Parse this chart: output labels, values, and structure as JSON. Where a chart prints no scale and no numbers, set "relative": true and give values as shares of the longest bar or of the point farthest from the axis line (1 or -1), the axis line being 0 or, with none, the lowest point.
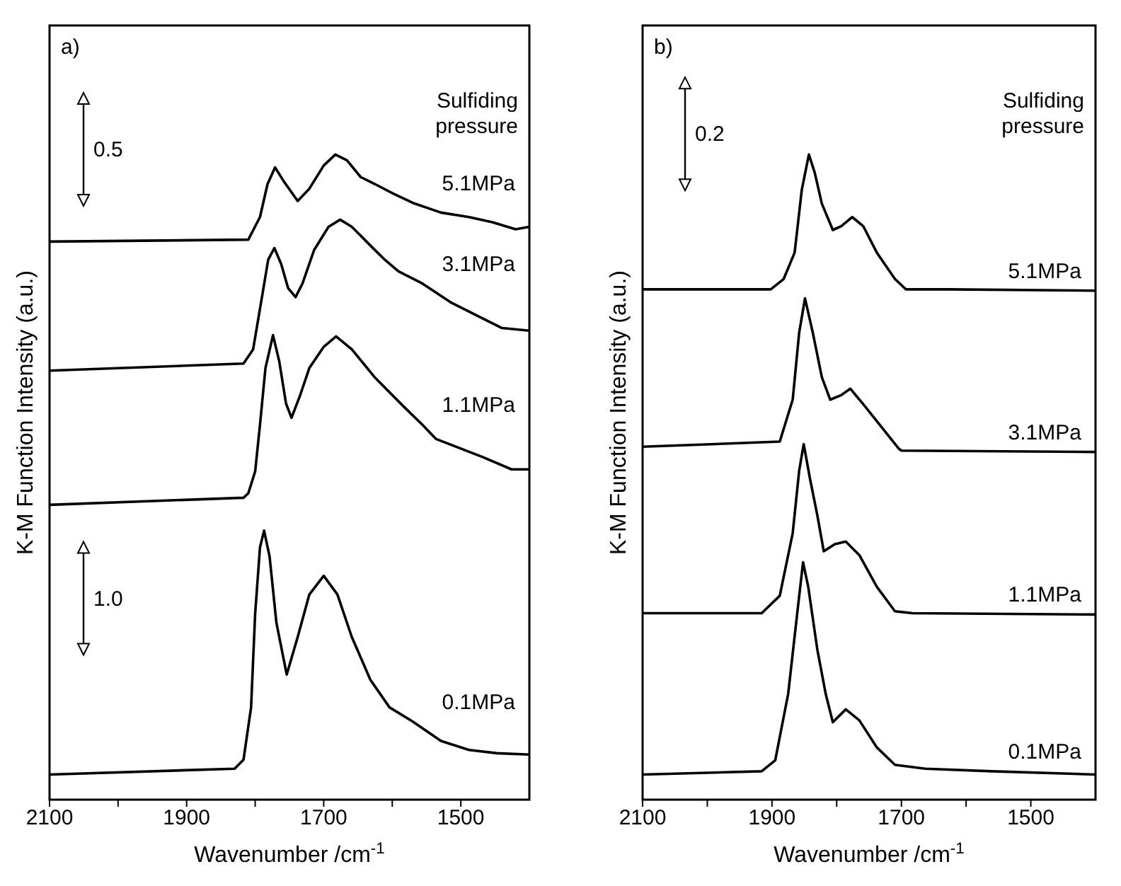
{
  "chart_data": [
    {
      "type": "line",
      "relative": true,
      "ylabel": "K-M Function Intensity (a.u.)",
      "xlabel": "Wavenumber /cm$^{-1}$",
      "xlim": [
        2100,
        1400
      ],
      "xticks": [
        2100,
        {
          "value": 2000,
          "label": null
        },
        1900,
        {
          "value": 1800,
          "label": null
        },
        1700,
        {
          "value": 1600,
          "label": null
        },
        1500
      ],
      "annotations": [
        "a)",
        "Sulfiding pressure",
        "0.5",
        "1.0"
      ],
      "series": [
        {
          "name": "5.1MPa",
          "color": "#000000",
          "x": [
            2100,
            1810,
            1793,
            1782,
            1771,
            1758,
            1738,
            1721,
            1700,
            1683,
            1666,
            1646,
            1625,
            1598,
            1570,
            1529,
            1488,
            1454,
            1420,
            1400
          ],
          "values": [
            0.865,
            0.868,
            0.903,
            0.954,
            0.98,
            0.958,
            0.928,
            0.947,
            0.983,
            1.0,
            0.991,
            0.965,
            0.954,
            0.939,
            0.925,
            0.91,
            0.903,
            0.895,
            0.884,
            0.888
          ]
        },
        {
          "name": "3.1MPa",
          "color": "#000000",
          "x": [
            2100,
            1817,
            1803,
            1789,
            1781,
            1772,
            1762,
            1752,
            1741,
            1731,
            1714,
            1693,
            1676,
            1659,
            1632,
            1611,
            1591,
            1556,
            1515,
            1474,
            1440,
            1400
          ],
          "values": [
            0.665,
            0.676,
            0.698,
            0.786,
            0.837,
            0.855,
            0.83,
            0.793,
            0.779,
            0.8,
            0.852,
            0.888,
            0.899,
            0.888,
            0.859,
            0.837,
            0.819,
            0.8,
            0.771,
            0.749,
            0.731,
            0.727
          ]
        },
        {
          "name": "1.1MPa",
          "color": "#000000",
          "x": [
            2100,
            1817,
            1810,
            1800,
            1793,
            1785,
            1774,
            1765,
            1755,
            1747,
            1735,
            1721,
            1700,
            1682,
            1659,
            1625,
            1584,
            1556,
            1536,
            1502,
            1468,
            1426,
            1400
          ],
          "values": [
            0.457,
            0.468,
            0.475,
            0.509,
            0.581,
            0.669,
            0.72,
            0.68,
            0.614,
            0.592,
            0.625,
            0.669,
            0.702,
            0.718,
            0.698,
            0.654,
            0.61,
            0.581,
            0.559,
            0.545,
            0.531,
            0.512,
            0.512
          ]
        },
        {
          "name": "0.1MPa",
          "color": "#000000",
          "x": [
            2100,
            1830,
            1817,
            1806,
            1800,
            1793,
            1787,
            1779,
            1769,
            1754,
            1738,
            1721,
            1700,
            1680,
            1659,
            1632,
            1604,
            1570,
            1529,
            1488,
            1447,
            1400
          ],
          "values": [
            0.039,
            0.048,
            0.062,
            0.143,
            0.289,
            0.391,
            0.417,
            0.377,
            0.274,
            0.194,
            0.252,
            0.318,
            0.347,
            0.318,
            0.252,
            0.186,
            0.143,
            0.121,
            0.091,
            0.077,
            0.072,
            0.07
          ]
        }
      ]
    },
    {
      "type": "line",
      "relative": true,
      "ylabel": "K-M Function Intensity (a.u.)",
      "xlabel": "Wavenumber /cm$^{-1}$",
      "xlim": [
        2100,
        1400
      ],
      "xticks": [
        2100,
        {
          "value": 2000,
          "label": null
        },
        1900,
        {
          "value": 1800,
          "label": null
        },
        1700,
        {
          "value": 1600,
          "label": null
        },
        1500
      ],
      "annotations": [
        "b)",
        "Sulfiding pressure",
        "0.2"
      ],
      "series": [
        {
          "name": "5.1MPa",
          "color": "#000000",
          "x": [
            2100,
            1902,
            1882,
            1865,
            1854,
            1843,
            1834,
            1823,
            1806,
            1793,
            1776,
            1759,
            1738,
            1710,
            1693,
            1628,
            1400
          ],
          "values": [
            0.791,
            0.791,
            0.807,
            0.848,
            0.945,
            1.0,
            0.972,
            0.924,
            0.883,
            0.889,
            0.903,
            0.889,
            0.848,
            0.807,
            0.791,
            0.791,
            0.789
          ]
        },
        {
          "name": "3.1MPa",
          "color": "#000000",
          "x": [
            2100,
            1888,
            1868,
            1858,
            1849,
            1837,
            1823,
            1810,
            1793,
            1779,
            1759,
            1731,
            1704,
            1700,
            1400
          ],
          "values": [
            0.547,
            0.555,
            0.62,
            0.724,
            0.777,
            0.724,
            0.655,
            0.62,
            0.627,
            0.637,
            0.613,
            0.578,
            0.544,
            0.541,
            0.539
          ]
        },
        {
          "name": "1.1MPa",
          "color": "#000000",
          "x": [
            2100,
            1916,
            1888,
            1868,
            1858,
            1851,
            1841,
            1830,
            1820,
            1803,
            1786,
            1765,
            1738,
            1710,
            1683,
            1400
          ],
          "values": [
            0.289,
            0.289,
            0.316,
            0.413,
            0.51,
            0.551,
            0.496,
            0.441,
            0.385,
            0.396,
            0.4,
            0.379,
            0.33,
            0.292,
            0.289,
            0.287
          ]
        },
        {
          "name": "0.1MPa",
          "color": "#000000",
          "x": [
            2100,
            1916,
            1895,
            1875,
            1861,
            1852,
            1844,
            1830,
            1817,
            1806,
            1786,
            1765,
            1738,
            1710,
            1663,
            1560,
            1400
          ],
          "values": [
            0.039,
            0.044,
            0.061,
            0.164,
            0.289,
            0.368,
            0.33,
            0.233,
            0.164,
            0.12,
            0.14,
            0.123,
            0.081,
            0.054,
            0.048,
            0.044,
            0.039
          ]
        }
      ]
    }
  ]
}
